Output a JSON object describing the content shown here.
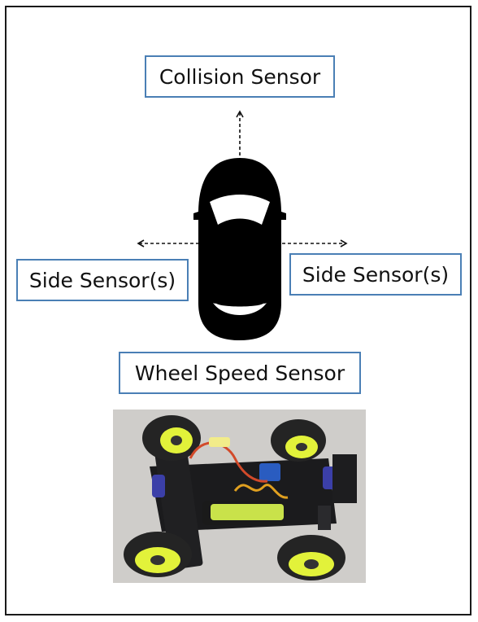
{
  "labels": {
    "collision": "Collision Sensor",
    "side_left": "Side Sensor(s)",
    "side_right": "Side Sensor(s)",
    "wheel_speed": "Wheel Speed Sensor"
  },
  "icons": {
    "car": "car-top-view-icon",
    "arrow_up": "dashed-arrow-up-icon",
    "arrow_left": "dashed-arrow-left-icon",
    "arrow_right": "dashed-arrow-right-icon"
  },
  "colors": {
    "box_border": "#4a7fb5",
    "frame_border": "#1a1a1a",
    "car_body": "#000000",
    "wheel_hub": "#e2f23a"
  },
  "photo": {
    "subject": "rc-car-photo"
  }
}
